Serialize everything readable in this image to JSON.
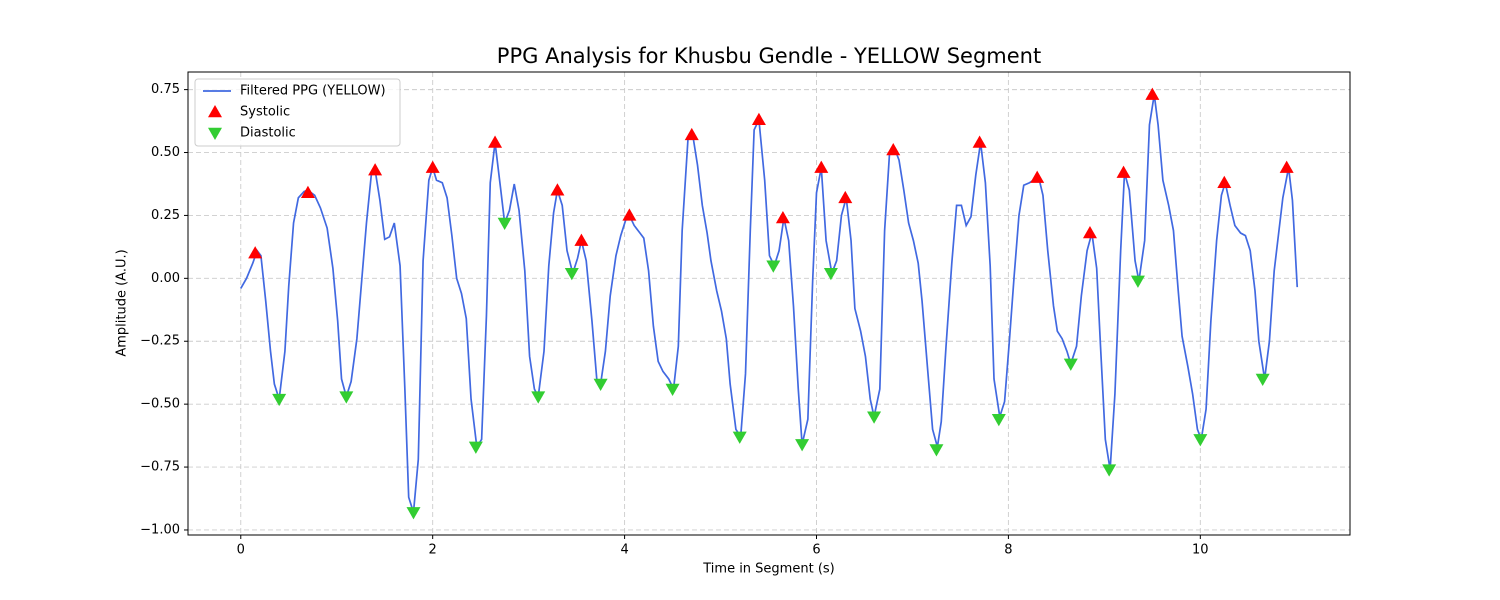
{
  "chart_data": {
    "type": "line",
    "title": "PPG Analysis for Khusbu Gendle - YELLOW Segment",
    "xlabel": "Time in Segment (s)",
    "ylabel": "Amplitude (A.U.)",
    "xlim": [
      -0.55,
      11.56
    ],
    "ylim": [
      -1.02,
      0.82
    ],
    "xticks": [
      0,
      2,
      4,
      6,
      8,
      10
    ],
    "yticks": [
      {
        "value": -1.0,
        "label": "−1.00"
      },
      {
        "value": -0.75,
        "label": "−0.75"
      },
      {
        "value": -0.5,
        "label": "−0.50"
      },
      {
        "value": -0.25,
        "label": "−0.25"
      },
      {
        "value": 0,
        "label": "0.00"
      },
      0.25,
      {
        "value": 0.5,
        "label": "0.50"
      },
      0.75
    ],
    "grid": true,
    "legend": "upper left",
    "series": [
      {
        "name": "Filtered PPG (YELLOW)",
        "color": "#4169e1",
        "marker": "line",
        "x": [
          0,
          0.06,
          0.125,
          0.17,
          0.21,
          0.26,
          0.31,
          0.35,
          0.4,
          0.46,
          0.5,
          0.55,
          0.6,
          0.66,
          0.7,
          0.77,
          0.83,
          0.9,
          0.96,
          1.01,
          1.05,
          1.1,
          1.15,
          1.21,
          1.26,
          1.31,
          1.36,
          1.4,
          1.45,
          1.5,
          1.55,
          1.6,
          1.66,
          1.71,
          1.75,
          1.8,
          1.85,
          1.9,
          1.96,
          2.0,
          2.04,
          2.1,
          2.15,
          2.2,
          2.25,
          2.3,
          2.35,
          2.4,
          2.46,
          2.51,
          2.56,
          2.6,
          2.65,
          2.71,
          2.75,
          2.8,
          2.85,
          2.9,
          2.96,
          3.01,
          3.06,
          3.1,
          3.16,
          3.21,
          3.26,
          3.3,
          3.35,
          3.4,
          3.46,
          3.51,
          3.55,
          3.6,
          3.66,
          3.71,
          3.75,
          3.8,
          3.85,
          3.91,
          3.96,
          4.01,
          4.05,
          4.1,
          4.16,
          4.2,
          4.25,
          4.3,
          4.35,
          4.4,
          4.46,
          4.51,
          4.56,
          4.6,
          4.66,
          4.71,
          4.76,
          4.81,
          4.86,
          4.9,
          4.96,
          5.01,
          5.06,
          5.1,
          5.16,
          5.21,
          5.26,
          5.31,
          5.35,
          5.4,
          5.46,
          5.51,
          5.56,
          5.61,
          5.66,
          5.71,
          5.76,
          5.81,
          5.85,
          5.91,
          5.96,
          6.0,
          6.05,
          6.1,
          6.16,
          6.21,
          6.26,
          6.31,
          6.36,
          6.4,
          6.46,
          6.51,
          6.56,
          6.6,
          6.66,
          6.71,
          6.76,
          6.81,
          6.86,
          6.91,
          6.96,
          7.01,
          7.06,
          7.1,
          7.16,
          7.21,
          7.26,
          7.3,
          7.35,
          7.41,
          7.46,
          7.51,
          7.56,
          7.61,
          7.66,
          7.71,
          7.76,
          7.81,
          7.85,
          7.91,
          7.96,
          8.01,
          8.06,
          8.11,
          8.16,
          8.22,
          8.26,
          8.31,
          8.36,
          8.41,
          8.47,
          8.51,
          8.56,
          8.61,
          8.65,
          8.71,
          8.76,
          8.82,
          8.87,
          8.92,
          8.96,
          9.01,
          9.06,
          9.11,
          9.17,
          9.21,
          9.26,
          9.32,
          9.36,
          9.42,
          9.47,
          9.52,
          9.56,
          9.61,
          9.67,
          9.72,
          9.77,
          9.81,
          9.87,
          9.92,
          9.97,
          10.01,
          10.06,
          10.11,
          10.17,
          10.22,
          10.26,
          10.31,
          10.36,
          10.42,
          10.47,
          10.52,
          10.57,
          10.61,
          10.67,
          10.72,
          10.77,
          10.86,
          10.92,
          10.96,
          11.01
        ],
        "values": [
          -0.04,
          0.0,
          0.06,
          0.11,
          0.09,
          -0.09,
          -0.29,
          -0.42,
          -0.48,
          -0.29,
          -0.03,
          0.22,
          0.32,
          0.345,
          0.35,
          0.33,
          0.28,
          0.2,
          0.04,
          -0.17,
          -0.4,
          -0.47,
          -0.41,
          -0.24,
          -0.01,
          0.22,
          0.41,
          0.43,
          0.31,
          0.155,
          0.165,
          0.22,
          0.05,
          -0.44,
          -0.87,
          -0.93,
          -0.72,
          0.07,
          0.39,
          0.44,
          0.39,
          0.38,
          0.32,
          0.17,
          0.0,
          -0.06,
          -0.16,
          -0.48,
          -0.67,
          -0.64,
          -0.15,
          0.38,
          0.54,
          0.35,
          0.22,
          0.27,
          0.375,
          0.27,
          0.03,
          -0.31,
          -0.44,
          -0.47,
          -0.29,
          0.05,
          0.26,
          0.35,
          0.29,
          0.11,
          0.02,
          0.08,
          0.15,
          0.07,
          -0.17,
          -0.4,
          -0.42,
          -0.29,
          -0.07,
          0.09,
          0.17,
          0.23,
          0.25,
          0.21,
          0.18,
          0.16,
          0.03,
          -0.19,
          -0.33,
          -0.37,
          -0.4,
          -0.44,
          -0.27,
          0.19,
          0.55,
          0.57,
          0.45,
          0.29,
          0.18,
          0.07,
          -0.05,
          -0.13,
          -0.24,
          -0.42,
          -0.6,
          -0.63,
          -0.38,
          0.19,
          0.59,
          0.63,
          0.39,
          0.09,
          0.05,
          0.11,
          0.24,
          0.15,
          -0.11,
          -0.44,
          -0.66,
          -0.56,
          -0.01,
          0.34,
          0.44,
          0.15,
          0.02,
          0.07,
          0.25,
          0.32,
          0.15,
          -0.12,
          -0.21,
          -0.31,
          -0.48,
          -0.55,
          -0.44,
          0.19,
          0.49,
          0.52,
          0.47,
          0.35,
          0.22,
          0.15,
          0.06,
          -0.09,
          -0.37,
          -0.6,
          -0.67,
          -0.57,
          -0.27,
          0.06,
          0.29,
          0.29,
          0.21,
          0.245,
          0.41,
          0.54,
          0.38,
          0.05,
          -0.4,
          -0.55,
          -0.49,
          -0.25,
          0.01,
          0.25,
          0.37,
          0.38,
          0.39,
          0.41,
          0.33,
          0.11,
          -0.11,
          -0.21,
          -0.24,
          -0.29,
          -0.34,
          -0.27,
          -0.07,
          0.11,
          0.18,
          0.04,
          -0.27,
          -0.64,
          -0.76,
          -0.46,
          0.11,
          0.42,
          0.35,
          0.07,
          -0.01,
          0.15,
          0.61,
          0.73,
          0.61,
          0.39,
          0.29,
          0.19,
          -0.05,
          -0.23,
          -0.35,
          -0.46,
          -0.6,
          -0.64,
          -0.52,
          -0.17,
          0.15,
          0.33,
          0.38,
          0.29,
          0.21,
          0.18,
          0.17,
          0.11,
          -0.05,
          -0.25,
          -0.4,
          -0.25,
          0.03,
          0.32,
          0.44,
          0.31,
          -0.035
        ]
      },
      {
        "name": "Systolic",
        "color": "#ff0000",
        "marker": "triangle-up",
        "x": [
          0.15,
          0.7,
          1.4,
          2.0,
          2.65,
          3.3,
          3.55,
          4.05,
          4.7,
          5.4,
          5.65,
          6.05,
          6.3,
          6.8,
          7.7,
          8.3,
          8.85,
          9.2,
          9.5,
          10.25,
          10.9
        ],
        "values": [
          0.1,
          0.34,
          0.43,
          0.44,
          0.54,
          0.35,
          0.15,
          0.25,
          0.57,
          0.63,
          0.24,
          0.44,
          0.32,
          0.51,
          0.54,
          0.4,
          0.18,
          0.42,
          0.73,
          0.38,
          0.44
        ]
      },
      {
        "name": "Diastolic",
        "color": "#32cd32",
        "marker": "triangle-down",
        "x": [
          0.4,
          1.1,
          1.8,
          2.45,
          2.75,
          3.1,
          3.45,
          3.75,
          4.5,
          5.2,
          5.55,
          5.85,
          6.15,
          6.6,
          7.25,
          7.9,
          8.65,
          9.05,
          9.35,
          10.0,
          10.65
        ],
        "values": [
          -0.48,
          -0.47,
          -0.93,
          -0.67,
          0.22,
          -0.47,
          0.02,
          -0.42,
          -0.44,
          -0.63,
          0.05,
          -0.66,
          0.02,
          -0.55,
          -0.68,
          -0.56,
          -0.34,
          -0.76,
          -0.01,
          -0.64,
          -0.4
        ]
      }
    ]
  }
}
